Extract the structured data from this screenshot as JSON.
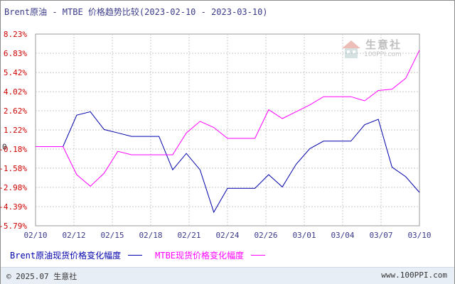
{
  "title": "Brent原油 - MTBE 价格趋势比较(2023-02-10 - 2023-03-10)",
  "footer": {
    "copyright": "© 2025.07 生意社",
    "site": "www.100PPI.com"
  },
  "watermark": {
    "brand": "生意社",
    "domain": "100PPI.com"
  },
  "colors": {
    "axis_label": "#cc0000",
    "x_label": "#3a3a8a",
    "grid": "#c8c8c8",
    "brent": "#0000aa",
    "mtbe": "#ff00ff"
  },
  "chart_data": {
    "type": "line",
    "x_ticks": [
      "02/10",
      "02/12",
      "02/15",
      "02/18",
      "02/21",
      "02/24",
      "02/26",
      "03/01",
      "03/04",
      "03/07",
      "03/10"
    ],
    "y_ticks": [
      "8.23%",
      "6.83%",
      "5.42%",
      "4.02%",
      "2.62%",
      "1.22%",
      "-0.18%",
      "-1.58%",
      "-2.98%",
      "-4.39%",
      "-5.79%"
    ],
    "y_tick_values": [
      8.23,
      6.83,
      5.42,
      4.02,
      2.62,
      1.22,
      -0.18,
      -1.58,
      -2.98,
      -4.39,
      -5.79
    ],
    "zero_label": "0",
    "ylim": [
      -5.79,
      8.23
    ],
    "xlim": [
      0,
      28
    ],
    "grid": true,
    "legend_position": "bottom",
    "series": [
      {
        "name": "Brent原油现货价格变化幅度",
        "color_key": "brent",
        "x": [
          0,
          2,
          3,
          4,
          5,
          6,
          7,
          8,
          9,
          10,
          11,
          12,
          13,
          14,
          15,
          16,
          17,
          18,
          19,
          20,
          21,
          22,
          23,
          24,
          25,
          26,
          27,
          28
        ],
        "y": [
          0,
          0,
          2.3,
          2.55,
          1.25,
          1.0,
          0.75,
          0.75,
          0.75,
          -1.7,
          -0.5,
          -1.7,
          -4.8,
          -3.05,
          -3.05,
          -3.05,
          -2.05,
          -2.95,
          -1.3,
          -0.15,
          0.4,
          0.4,
          0.4,
          1.6,
          2.0,
          -1.5,
          -2.2,
          -3.35
        ]
      },
      {
        "name": "MTBE现货价格变化幅度",
        "color_key": "mtbe",
        "x": [
          0,
          2,
          3,
          4,
          5,
          6,
          7,
          8,
          9,
          10,
          11,
          12,
          13,
          14,
          15,
          16,
          17,
          18,
          19,
          20,
          21,
          22,
          23,
          24,
          25,
          26,
          27,
          28
        ],
        "y": [
          0,
          0,
          -2.05,
          -2.9,
          -1.95,
          -0.35,
          -0.6,
          -0.6,
          -0.6,
          -0.6,
          1.0,
          1.85,
          1.4,
          0.6,
          0.6,
          0.6,
          2.7,
          2.05,
          2.55,
          3.05,
          3.65,
          3.65,
          3.65,
          3.35,
          4.1,
          4.2,
          5.0,
          7.05
        ]
      }
    ]
  }
}
